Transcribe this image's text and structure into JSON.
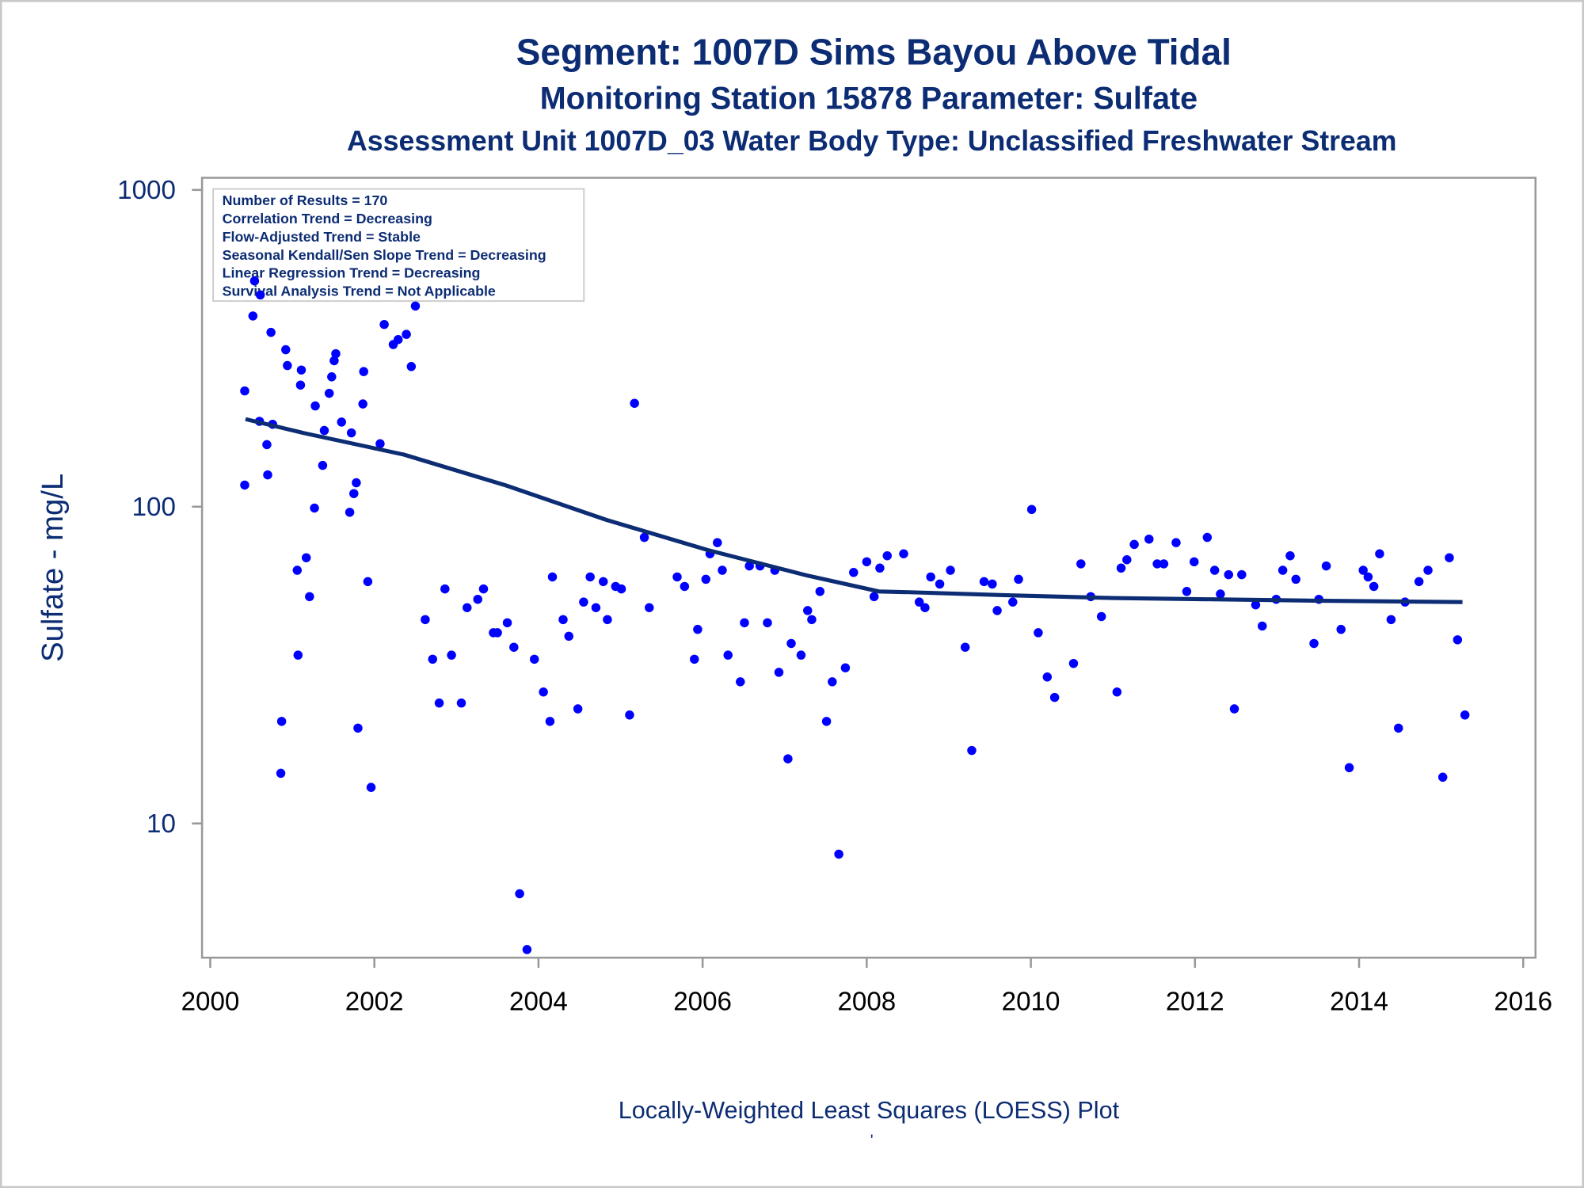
{
  "chart_data": {
    "type": "scatter",
    "title": "Segment: 1007D  Sims Bayou Above Tidal",
    "subtitle": "Monitoring Station 15878 Parameter: Sulfate",
    "subtitle2": "Assessment Unit 1007D_03   Water Body Type: Unclassified Freshwater Stream",
    "ylabel": "Sulfate - mg/L",
    "footnote": "Locally-Weighted Least Squares (LOESS) Plot",
    "footnote2": "'",
    "inset": [
      "Number of Results = 170",
      "Correlation Trend = Decreasing",
      "Flow-Adjusted Trend = Stable",
      "Seasonal Kendall/Sen Slope Trend = Decreasing",
      "Linear Regression Trend = Decreasing",
      "Survival Analysis Trend = Not Applicable"
    ],
    "xlim": [
      1999.9,
      2016.15
    ],
    "xticks": [
      2000,
      2002,
      2004,
      2006,
      2008,
      2010,
      2012,
      2014,
      2016
    ],
    "ylim": [
      3.77,
      1092
    ],
    "yticks": [
      10,
      100,
      1000
    ],
    "log_y": true,
    "series": [
      {
        "name": "Sulfate",
        "color": "#0000ff",
        "x": [
          2000.42,
          2000.42,
          2000.52,
          2000.54,
          2000.6,
          2000.61,
          2000.69,
          2000.7,
          2000.74,
          2000.76,
          2000.87,
          2000.86,
          2000.92,
          2000.94,
          2001.06,
          2001.07,
          2001.1,
          2001.11,
          2001.17,
          2001.21,
          2001.28,
          2001.27,
          2001.37,
          2001.39,
          2001.45,
          2001.48,
          2001.51,
          2001.53,
          2001.6,
          2001.7,
          2001.72,
          2001.75,
          2001.78,
          2001.8,
          2001.86,
          2001.87,
          2001.92,
          2001.96,
          2002.07,
          2002.12,
          2002.23,
          2002.29,
          2002.39,
          2002.45,
          2002.5,
          2002.62,
          2002.71,
          2002.79,
          2002.86,
          2002.94,
          2003.06,
          2003.13,
          2003.26,
          2003.33,
          2003.45,
          2003.5,
          2003.62,
          2003.7,
          2003.77,
          2003.86,
          2003.95,
          2004.06,
          2004.14,
          2004.17,
          2004.3,
          2004.37,
          2004.48,
          2004.55,
          2004.63,
          2004.7,
          2004.79,
          2004.84,
          2004.94,
          2005.01,
          2005.11,
          2005.17,
          2005.29,
          2005.35,
          2005.69,
          2005.78,
          2005.9,
          2005.94,
          2006.04,
          2006.09,
          2006.18,
          2006.24,
          2006.31,
          2006.46,
          2006.51,
          2006.57,
          2006.7,
          2006.79,
          2006.88,
          2006.93,
          2007.04,
          2007.08,
          2007.2,
          2007.28,
          2007.33,
          2007.43,
          2007.51,
          2007.58,
          2007.66,
          2007.74,
          2007.84,
          2008.0,
          2008.09,
          2008.16,
          2008.25,
          2008.45,
          2008.64,
          2008.71,
          2008.78,
          2008.89,
          2009.02,
          2009.2,
          2009.28,
          2009.43,
          2009.53,
          2009.59,
          2009.78,
          2009.85,
          2010.01,
          2010.09,
          2010.2,
          2010.29,
          2010.52,
          2010.61,
          2010.73,
          2010.86,
          2011.05,
          2011.1,
          2011.17,
          2011.26,
          2011.44,
          2011.54,
          2011.62,
          2011.77,
          2011.9,
          2011.99,
          2012.15,
          2012.24,
          2012.31,
          2012.41,
          2012.48,
          2012.57,
          2012.74,
          2012.82,
          2012.99,
          2013.07,
          2013.16,
          2013.23,
          2013.45,
          2013.51,
          2013.6,
          2013.78,
          2013.88,
          2014.05,
          2014.11,
          2014.18,
          2014.25,
          2014.39,
          2014.48,
          2014.56,
          2014.73,
          2014.84,
          2015.02,
          2015.1,
          2015.2,
          2015.29
        ],
        "values": [
          117,
          232,
          400,
          516,
          186,
          466,
          157,
          126,
          355,
          182,
          21,
          14.4,
          313,
          279,
          63,
          34,
          242,
          270,
          69,
          52,
          208,
          99,
          135,
          174,
          228,
          257,
          289,
          304,
          185,
          96,
          171,
          110,
          119,
          20,
          211,
          267,
          58,
          13,
          158,
          376,
          325,
          337,
          350,
          277,
          430,
          44,
          33,
          24,
          55,
          34,
          24,
          48,
          51,
          55,
          40,
          40,
          43,
          36,
          6.0,
          4.0,
          33,
          26,
          21,
          60,
          44,
          39,
          23,
          50,
          60,
          48,
          58,
          44,
          56,
          55,
          22,
          212,
          80,
          48,
          60,
          56,
          33,
          41,
          59,
          71,
          77,
          63,
          34,
          28,
          43,
          65,
          65,
          43,
          63,
          30,
          16,
          37,
          34,
          47,
          44,
          54,
          21,
          28,
          8.0,
          31,
          62,
          67,
          52,
          64,
          70,
          71,
          50,
          48,
          60,
          57,
          63,
          36,
          17,
          58,
          57,
          47,
          50,
          59,
          98,
          40,
          29,
          25,
          32,
          66,
          52,
          45,
          26,
          64,
          68,
          76,
          79,
          66,
          66,
          77,
          54,
          67,
          80,
          63,
          53,
          61,
          23,
          61,
          49,
          42,
          51,
          63,
          70,
          59,
          37,
          51,
          65,
          41,
          15,
          63,
          60,
          56,
          71,
          44,
          20,
          50,
          58,
          63,
          14,
          69,
          38,
          22
        ]
      },
      {
        "name": "LOESS",
        "color": "#0c2c73",
        "x": [
          2000.43,
          2001.13,
          2002.36,
          2003.59,
          2004.82,
          2006.06,
          2007.29,
          2008.15,
          2008.52,
          2009.75,
          2010.98,
          2012.21,
          2013.44,
          2015.26
        ],
        "values": [
          189,
          171,
          146,
          117,
          91,
          73,
          60.5,
          54,
          53.7,
          52.5,
          51.5,
          51,
          50.5,
          50
        ]
      }
    ]
  }
}
